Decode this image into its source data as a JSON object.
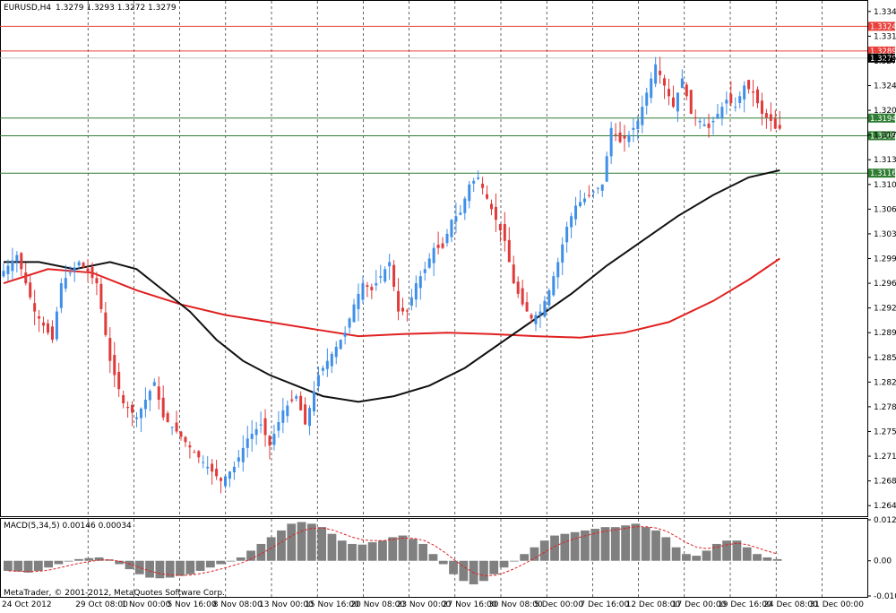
{
  "chart_data": [
    {
      "type": "candlestick",
      "symbol_header": "EURUSD,H4",
      "ohlc_header": "1.3279 1.3293 1.3272 1.3279",
      "ylim": [
        1.263,
        1.336
      ],
      "y_ticks": [
        "1.3345",
        "1.3310",
        "1.3275",
        "1.3240",
        "1.3205",
        "1.3170",
        "1.3135",
        "1.3100",
        "1.3065",
        "1.3030",
        "1.2995",
        "1.2960",
        "1.2925",
        "1.2890",
        "1.2855",
        "1.2820",
        "1.2785",
        "1.2750",
        "1.2715",
        "1.2680",
        "1.2645"
      ],
      "x_ticks": [
        "24 Oct 2012",
        "29 Oct 08:00",
        "1 Nov 00:00",
        "5 Nov 16:00",
        "8 Nov 08:00",
        "13 Nov 00:00",
        "15 Nov 16:00",
        "20 Nov 08:00",
        "23 Nov 00:00",
        "27 Nov 16:00",
        "30 Nov 08:00",
        "5 Dec 00:00",
        "7 Dec 16:00",
        "12 Dec 08:00",
        "17 Dec 00:00",
        "19 Dec 16:00",
        "24 Dec 08:00",
        "31 Dec 00:00"
      ],
      "grid": true,
      "horizontal_levels": [
        {
          "value": 1.3324,
          "label": "1.3324",
          "color": "#e8403a"
        },
        {
          "value": 1.3289,
          "label": "1.3289",
          "color": "#e8403a"
        },
        {
          "value": 1.3279,
          "label": "1.3279",
          "color": "#000000"
        },
        {
          "value": 1.3194,
          "label": "1.3194",
          "color": "#2e7d32"
        },
        {
          "value": 1.3169,
          "label": "1.3169",
          "color": "#2e7d32"
        },
        {
          "value": 1.3116,
          "label": "1.3116",
          "color": "#2e7d32"
        }
      ],
      "price_path": [
        [
          0,
          1.297
        ],
        [
          4,
          1.3
        ],
        [
          8,
          1.292
        ],
        [
          12,
          1.288
        ],
        [
          14,
          1.296
        ],
        [
          18,
          1.299
        ],
        [
          22,
          1.296
        ],
        [
          25,
          1.285
        ],
        [
          28,
          1.279
        ],
        [
          31,
          1.277
        ],
        [
          35,
          1.282
        ],
        [
          37,
          1.277
        ],
        [
          40,
          1.275
        ],
        [
          44,
          1.272
        ],
        [
          47,
          1.27
        ],
        [
          50,
          1.268
        ],
        [
          53,
          1.27
        ],
        [
          56,
          1.274
        ],
        [
          59,
          1.276
        ],
        [
          61,
          1.273
        ],
        [
          64,
          1.278
        ],
        [
          67,
          1.28
        ],
        [
          69,
          1.276
        ],
        [
          72,
          1.283
        ],
        [
          75,
          1.286
        ],
        [
          78,
          1.289
        ],
        [
          80,
          1.293
        ],
        [
          82,
          1.296
        ],
        [
          84,
          1.295
        ],
        [
          86,
          1.297
        ],
        [
          88,
          1.299
        ],
        [
          90,
          1.292
        ],
        [
          92,
          1.292
        ],
        [
          94,
          1.296
        ],
        [
          96,
          1.298
        ],
        [
          98,
          1.301
        ],
        [
          100,
          1.301
        ],
        [
          102,
          1.305
        ],
        [
          104,
          1.306
        ],
        [
          106,
          1.31
        ],
        [
          108,
          1.311
        ],
        [
          110,
          1.308
        ],
        [
          112,
          1.305
        ],
        [
          114,
          1.302
        ],
        [
          116,
          1.296
        ],
        [
          118,
          1.293
        ],
        [
          120,
          1.291
        ],
        [
          122,
          1.292
        ],
        [
          124,
          1.295
        ],
        [
          126,
          1.299
        ],
        [
          128,
          1.304
        ],
        [
          130,
          1.307
        ],
        [
          132,
          1.308
        ],
        [
          134,
          1.309
        ],
        [
          136,
          1.31
        ],
        [
          138,
          1.318
        ],
        [
          140,
          1.316
        ],
        [
          142,
          1.317
        ],
        [
          144,
          1.319
        ],
        [
          146,
          1.323
        ],
        [
          148,
          1.327
        ],
        [
          150,
          1.324
        ],
        [
          152,
          1.321
        ],
        [
          154,
          1.325
        ],
        [
          156,
          1.32
        ],
        [
          158,
          1.319
        ],
        [
          160,
          1.318
        ],
        [
          162,
          1.32
        ],
        [
          164,
          1.322
        ],
        [
          166,
          1.321
        ],
        [
          168,
          1.324
        ],
        [
          170,
          1.323
        ],
        [
          172,
          1.32
        ],
        [
          174,
          1.319
        ],
        [
          175,
          1.3179
        ]
      ],
      "ma_black": [
        [
          0,
          1.299
        ],
        [
          8,
          1.299
        ],
        [
          16,
          1.298
        ],
        [
          24,
          1.299
        ],
        [
          30,
          1.298
        ],
        [
          36,
          1.295
        ],
        [
          42,
          1.292
        ],
        [
          48,
          1.288
        ],
        [
          54,
          1.285
        ],
        [
          60,
          1.283
        ],
        [
          66,
          1.2815
        ],
        [
          72,
          1.28
        ],
        [
          80,
          1.2792
        ],
        [
          88,
          1.28
        ],
        [
          96,
          1.2815
        ],
        [
          104,
          1.284
        ],
        [
          112,
          1.2875
        ],
        [
          120,
          1.291
        ],
        [
          128,
          1.2945
        ],
        [
          136,
          1.2985
        ],
        [
          144,
          1.302
        ],
        [
          152,
          1.3055
        ],
        [
          160,
          1.3085
        ],
        [
          168,
          1.311
        ],
        [
          175,
          1.312
        ]
      ],
      "ma_red": [
        [
          0,
          1.296
        ],
        [
          10,
          1.298
        ],
        [
          20,
          1.2975
        ],
        [
          30,
          1.295
        ],
        [
          40,
          1.293
        ],
        [
          50,
          1.2915
        ],
        [
          60,
          1.2905
        ],
        [
          70,
          1.2895
        ],
        [
          80,
          1.2885
        ],
        [
          90,
          1.2888
        ],
        [
          100,
          1.289
        ],
        [
          110,
          1.2888
        ],
        [
          120,
          1.2885
        ],
        [
          130,
          1.2883
        ],
        [
          140,
          1.289
        ],
        [
          150,
          1.2905
        ],
        [
          160,
          1.2935
        ],
        [
          168,
          1.2965
        ],
        [
          175,
          1.2995
        ]
      ],
      "series_colors": {
        "up": "#3f8fe8",
        "down": "#e03a3a",
        "ma_black": "#111111",
        "ma_red": "#e02020"
      }
    },
    {
      "type": "bar",
      "title": "MACD(5,34,5) 0.00146 0.00034",
      "ylim": [
        -0.01045,
        0.01217
      ],
      "y_ticks": [
        "0.01217",
        "0.00",
        "-0.01045"
      ],
      "histogram": [
        -0.003,
        -0.0032,
        -0.0035,
        -0.003,
        -0.002,
        -0.001,
        0.0,
        0.0005,
        0.0008,
        0.001,
        0.0004,
        -0.001,
        -0.0025,
        -0.004,
        -0.005,
        -0.0052,
        -0.005,
        -0.0045,
        -0.004,
        -0.003,
        -0.002,
        -0.001,
        0.0,
        0.001,
        0.003,
        0.005,
        0.007,
        0.009,
        0.011,
        0.0115,
        0.011,
        0.01,
        0.008,
        0.006,
        0.005,
        0.0048,
        0.0055,
        0.006,
        0.007,
        0.0075,
        0.0065,
        0.005,
        0.002,
        -0.001,
        -0.004,
        -0.006,
        -0.007,
        -0.006,
        -0.004,
        -0.002,
        0.0,
        0.002,
        0.004,
        0.006,
        0.0075,
        0.008,
        0.0085,
        0.009,
        0.0095,
        0.01,
        0.01,
        0.0105,
        0.011,
        0.01,
        0.009,
        0.007,
        0.004,
        0.002,
        0.0015,
        0.003,
        0.005,
        0.006,
        0.006,
        0.004,
        0.002,
        0.001,
        0.0005
      ],
      "signal_color": "#e02020",
      "bar_color": "#808080",
      "watermark": "MetaTrader, © 2001-2012, MetaQuotes Software Corp."
    }
  ]
}
